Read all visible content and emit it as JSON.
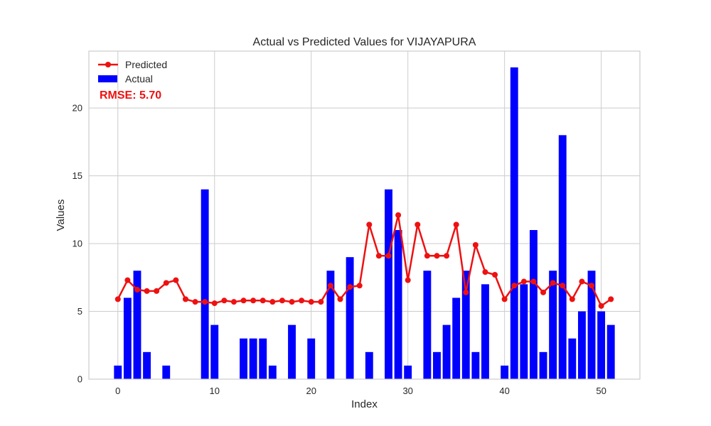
{
  "chart_data": {
    "type": "bar",
    "title": "Actual vs Predicted Values for VIJAYAPURA",
    "xlabel": "Index",
    "ylabel": "Values",
    "xlim": [
      -3,
      54
    ],
    "ylim": [
      0,
      24.2
    ],
    "xticks": [
      0,
      10,
      20,
      30,
      40,
      50
    ],
    "yticks": [
      0,
      5,
      10,
      15,
      20
    ],
    "grid": true,
    "legend_position": "top-left",
    "annotation": "RMSE: 5.70",
    "colors": {
      "actual": "#0000ff",
      "predicted": "#ee1111",
      "grid": "#cccccc",
      "frame": "#cccccc"
    },
    "series": [
      {
        "name": "Predicted",
        "kind": "line",
        "x": [
          0,
          1,
          2,
          3,
          4,
          5,
          6,
          7,
          8,
          9,
          10,
          11,
          12,
          13,
          14,
          15,
          16,
          17,
          18,
          19,
          20,
          21,
          22,
          23,
          24,
          25,
          26,
          27,
          28,
          29,
          30,
          31,
          32,
          33,
          34,
          35,
          36,
          37,
          38,
          39,
          40,
          41,
          42,
          43,
          44,
          45,
          46,
          47,
          48,
          49,
          50,
          51
        ],
        "values": [
          5.9,
          7.3,
          6.6,
          6.5,
          6.5,
          7.1,
          7.3,
          5.9,
          5.7,
          5.7,
          5.6,
          5.8,
          5.7,
          5.8,
          5.8,
          5.8,
          5.7,
          5.8,
          5.7,
          5.8,
          5.7,
          5.7,
          6.9,
          5.9,
          6.8,
          6.9,
          11.4,
          9.1,
          9.1,
          12.1,
          7.3,
          11.4,
          9.1,
          9.1,
          9.1,
          11.4,
          6.4,
          9.9,
          7.9,
          7.7,
          5.9,
          6.9,
          7.2,
          7.2,
          6.4,
          7.1,
          6.9,
          5.9,
          7.2,
          6.9,
          5.4,
          5.9
        ]
      },
      {
        "name": "Actual",
        "kind": "bar",
        "x": [
          0,
          1,
          2,
          3,
          4,
          5,
          6,
          7,
          8,
          9,
          10,
          11,
          12,
          13,
          14,
          15,
          16,
          17,
          18,
          19,
          20,
          21,
          22,
          23,
          24,
          25,
          26,
          27,
          28,
          29,
          30,
          31,
          32,
          33,
          34,
          35,
          36,
          37,
          38,
          39,
          40,
          41,
          42,
          43,
          44,
          45,
          46,
          47,
          48,
          49,
          50,
          51
        ],
        "values": [
          1,
          6,
          8,
          2,
          0,
          1,
          0,
          0,
          0,
          14,
          4,
          0,
          0,
          3,
          3,
          3,
          1,
          0,
          4,
          0,
          3,
          0,
          8,
          0,
          9,
          0,
          2,
          0,
          14,
          11,
          1,
          0,
          8,
          2,
          4,
          6,
          8,
          2,
          7,
          0,
          1,
          23,
          7,
          11,
          2,
          8,
          18,
          3,
          5,
          8,
          5,
          4
        ]
      }
    ]
  }
}
